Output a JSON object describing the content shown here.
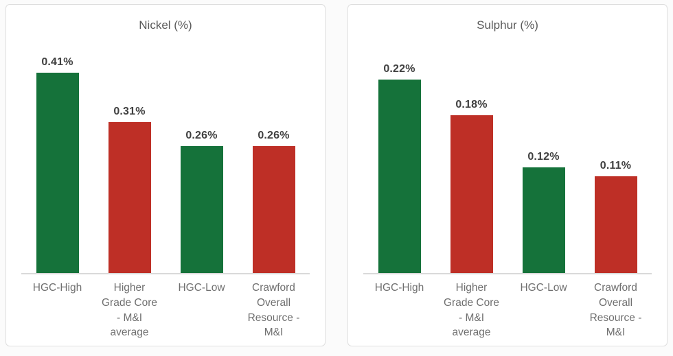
{
  "page": {
    "background": "#fbfbfb"
  },
  "colors": {
    "bar_green": "#15723A",
    "bar_red": "#BE2F26",
    "axis_line": "#D9D9D9",
    "card_border": "#DEDEDE",
    "title_text": "#595959",
    "value_label_text": "#404040",
    "category_text": "#6F6F6F"
  },
  "chart_data": [
    {
      "type": "bar",
      "title": "Nickel (%)",
      "categories": [
        "HGC-High",
        "Higher\nGrade Core\n- M&I\naverage",
        "HGC-Low",
        "Crawford\nOverall\nResource -\nM&I"
      ],
      "values": [
        0.41,
        0.31,
        0.26,
        0.26
      ],
      "value_labels": [
        "0.41%",
        "0.31%",
        "0.26%",
        "0.26%"
      ],
      "bar_colors": [
        "#15723A",
        "#BE2F26",
        "#15723A",
        "#BE2F26"
      ],
      "xlabel": "",
      "ylabel": "",
      "ylim": [
        0,
        0.45
      ],
      "grid": false,
      "legend": false
    },
    {
      "type": "bar",
      "title": "Sulphur (%)",
      "categories": [
        "HGC-High",
        "Higher\nGrade Core\n- M&I\naverage",
        "HGC-Low",
        "Crawford\nOverall\nResource -\nM&I"
      ],
      "values": [
        0.22,
        0.18,
        0.12,
        0.11
      ],
      "value_labels": [
        "0.22%",
        "0.18%",
        "0.12%",
        "0.11%"
      ],
      "bar_colors": [
        "#15723A",
        "#BE2F26",
        "#15723A",
        "#BE2F26"
      ],
      "xlabel": "",
      "ylabel": "",
      "ylim": [
        0,
        0.25
      ],
      "grid": false,
      "legend": false
    }
  ]
}
